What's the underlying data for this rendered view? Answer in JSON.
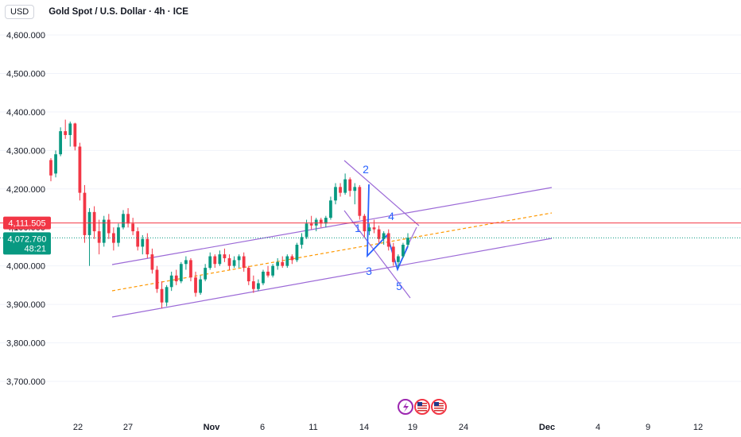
{
  "header": {
    "currency_button": "USD",
    "title": "Gold Spot / U.S. Dollar · 4h · ICE"
  },
  "colors": {
    "up": "#089981",
    "down": "#f23645",
    "channel": "#9c6ad7",
    "wave": "#2962ff",
    "midline": "#ff9800",
    "last_price": "#f23645",
    "current_price": "#089981"
  },
  "price_tags": {
    "last_price": "4,111.505",
    "current_price": "4,072.760",
    "countdown": "48:21"
  },
  "wave_labels": [
    "1",
    "2",
    "3",
    "4",
    "5"
  ],
  "event_icons": [
    "lightning-icon",
    "us-flag-icon",
    "us-flag-icon"
  ],
  "chart_data": {
    "type": "candlestick",
    "title": "Gold Spot / U.S. Dollar · 4h · ICE",
    "y_ticks": [
      "4,600.000",
      "4,500.000",
      "4,400.000",
      "4,300.000",
      "4,200.000",
      "4,100.000",
      "4,000.000",
      "3,900.000",
      "3,800.000",
      "3,700.000"
    ],
    "y_tick_values": [
      4600,
      4500,
      4400,
      4300,
      4200,
      4100,
      4000,
      3900,
      3800,
      3700
    ],
    "x_ticks": [
      "22",
      "27",
      "Nov",
      "6",
      "11",
      "14",
      "19",
      "24",
      "Dec",
      "4",
      "9",
      "12"
    ],
    "ylim": [
      3620,
      4660
    ],
    "last_price": 4111.505,
    "current_price": 4072.76,
    "candles": [
      [
        4275,
        4280,
        4220,
        4235
      ],
      [
        4240,
        4300,
        4230,
        4290
      ],
      [
        4290,
        4360,
        4285,
        4350
      ],
      [
        4350,
        4380,
        4330,
        4340
      ],
      [
        4340,
        4375,
        4310,
        4370
      ],
      [
        4370,
        4372,
        4300,
        4310
      ],
      [
        4310,
        4320,
        4170,
        4190
      ],
      [
        4190,
        4210,
        4060,
        4080
      ],
      [
        4080,
        4150,
        4000,
        4140
      ],
      [
        4140,
        4155,
        4070,
        4090
      ],
      [
        4090,
        4120,
        4030,
        4060
      ],
      [
        4060,
        4130,
        4050,
        4120
      ],
      [
        4120,
        4135,
        4070,
        4085
      ],
      [
        4085,
        4100,
        4040,
        4060
      ],
      [
        4060,
        4110,
        4050,
        4100
      ],
      [
        4100,
        4145,
        4095,
        4135
      ],
      [
        4135,
        4150,
        4100,
        4110
      ],
      [
        4110,
        4125,
        4080,
        4090
      ],
      [
        4090,
        4100,
        4040,
        4050
      ],
      [
        4050,
        4080,
        4030,
        4070
      ],
      [
        4070,
        4085,
        4020,
        4030
      ],
      [
        4030,
        4045,
        3980,
        3990
      ],
      [
        3990,
        4000,
        3930,
        3940
      ],
      [
        3940,
        3960,
        3890,
        3905
      ],
      [
        3905,
        3950,
        3895,
        3945
      ],
      [
        3945,
        3985,
        3935,
        3975
      ],
      [
        3975,
        3990,
        3950,
        3960
      ],
      [
        3960,
        4010,
        3955,
        4005
      ],
      [
        4005,
        4025,
        3990,
        4015
      ],
      [
        4015,
        4020,
        3960,
        3970
      ],
      [
        3970,
        3985,
        3920,
        3930
      ],
      [
        3930,
        3975,
        3925,
        3965
      ],
      [
        3965,
        4005,
        3960,
        3995
      ],
      [
        3995,
        4035,
        3990,
        4025
      ],
      [
        4025,
        4030,
        3995,
        4005
      ],
      [
        4005,
        4040,
        4000,
        4030
      ],
      [
        4030,
        4045,
        4010,
        4020
      ],
      [
        4020,
        4030,
        3990,
        4000
      ],
      [
        4000,
        4025,
        3995,
        4015
      ],
      [
        4015,
        4030,
        3995,
        4025
      ],
      [
        4025,
        4035,
        3985,
        3995
      ],
      [
        3995,
        4000,
        3950,
        3960
      ],
      [
        3960,
        3975,
        3930,
        3940
      ],
      [
        3940,
        3965,
        3935,
        3955
      ],
      [
        3955,
        3990,
        3950,
        3985
      ],
      [
        3985,
        4000,
        3970,
        3975
      ],
      [
        3975,
        4005,
        3970,
        4000
      ],
      [
        4000,
        4020,
        3990,
        4010
      ],
      [
        4010,
        4025,
        3995,
        4000
      ],
      [
        4000,
        4030,
        3995,
        4025
      ],
      [
        4025,
        4030,
        4005,
        4015
      ],
      [
        4015,
        4060,
        4010,
        4055
      ],
      [
        4055,
        4085,
        4045,
        4075
      ],
      [
        4075,
        4120,
        4070,
        4110
      ],
      [
        4110,
        4130,
        4095,
        4105
      ],
      [
        4105,
        4125,
        4090,
        4120
      ],
      [
        4120,
        4125,
        4100,
        4110
      ],
      [
        4110,
        4130,
        4100,
        4125
      ],
      [
        4125,
        4180,
        4120,
        4170
      ],
      [
        4170,
        4215,
        4160,
        4205
      ],
      [
        4205,
        4215,
        4180,
        4190
      ],
      [
        4190,
        4240,
        4185,
        4225
      ],
      [
        4225,
        4230,
        4180,
        4195
      ],
      [
        4195,
        4215,
        4160,
        4205
      ],
      [
        4205,
        4210,
        4120,
        4130
      ],
      [
        4130,
        4135,
        4075,
        4090
      ],
      [
        4090,
        4110,
        4080,
        4100
      ],
      [
        4100,
        4120,
        4085,
        4095
      ],
      [
        4095,
        4105,
        4060,
        4070
      ],
      [
        4070,
        4090,
        4055,
        4085
      ],
      [
        4085,
        4095,
        4040,
        4050
      ],
      [
        4050,
        4060,
        4000,
        4010
      ],
      [
        4010,
        4030,
        3995,
        4025
      ],
      [
        4025,
        4060,
        4020,
        4055
      ],
      [
        4055,
        4085,
        4050,
        4073
      ]
    ]
  }
}
